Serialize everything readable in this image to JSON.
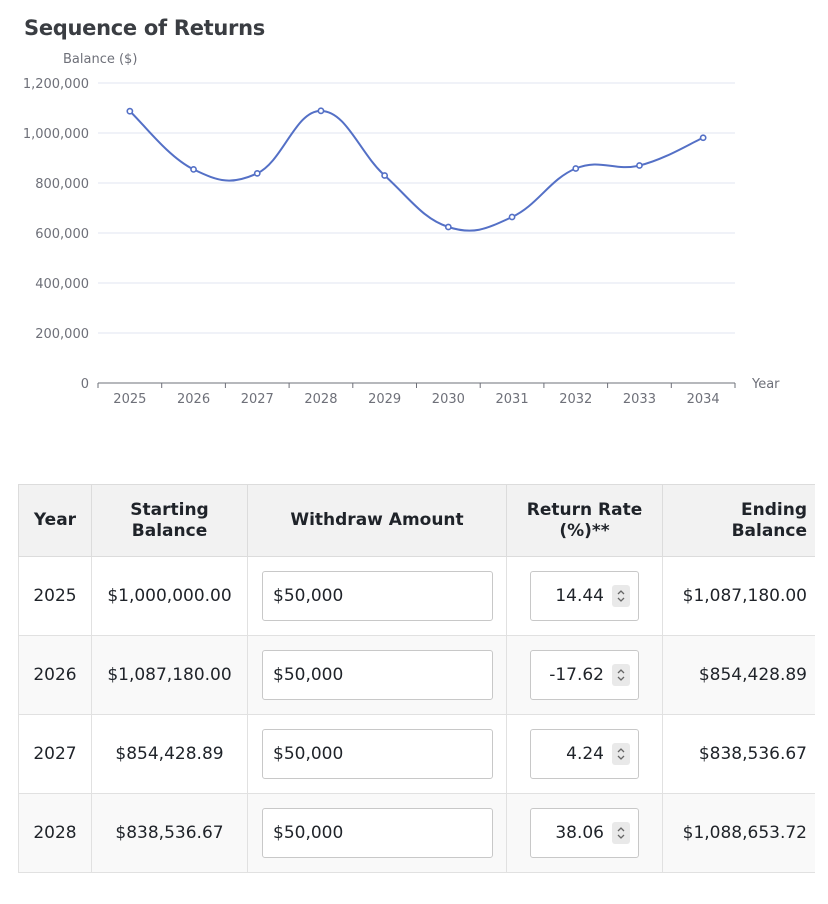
{
  "title": "Sequence of Returns",
  "chart_data": {
    "type": "line",
    "title": "Sequence of Returns",
    "ylabel": "Balance ($)",
    "xlabel": "Year",
    "categories": [
      "2025",
      "2026",
      "2027",
      "2028",
      "2029",
      "2030",
      "2031",
      "2032",
      "2033",
      "2034"
    ],
    "values": [
      1087180,
      854429,
      838537,
      1088654,
      830000,
      624000,
      664000,
      858000,
      870000,
      981000
    ],
    "ylim": [
      0,
      1200000
    ],
    "yticks": [
      0,
      200000,
      400000,
      600000,
      800000,
      1000000,
      1200000
    ],
    "ytick_labels": [
      "0",
      "200,000",
      "400,000",
      "600,000",
      "800,000",
      "1,000,000",
      "1,200,000"
    ],
    "grid": true,
    "line_color": "#5470c6",
    "smooth": true
  },
  "table": {
    "headers": {
      "year": "Year",
      "starting_line1": "Starting",
      "starting_line2": "Balance",
      "withdraw": "Withdraw Amount",
      "rate_line1": "Return Rate",
      "rate_line2": "(%)**",
      "ending_line1": "Ending",
      "ending_line2": "Balance"
    },
    "rows": [
      {
        "year": "2025",
        "starting": "$1,000,000.00",
        "withdraw": "$50,000",
        "rate": "14.44",
        "ending": "$1,087,180.00"
      },
      {
        "year": "2026",
        "starting": "$1,087,180.00",
        "withdraw": "$50,000",
        "rate": "-17.62",
        "ending": "$854,428.89"
      },
      {
        "year": "2027",
        "starting": "$854,428.89",
        "withdraw": "$50,000",
        "rate": "4.24",
        "ending": "$838,536.67"
      },
      {
        "year": "2028",
        "starting": "$838,536.67",
        "withdraw": "$50,000",
        "rate": "38.06",
        "ending": "$1,088,653.72"
      }
    ]
  }
}
